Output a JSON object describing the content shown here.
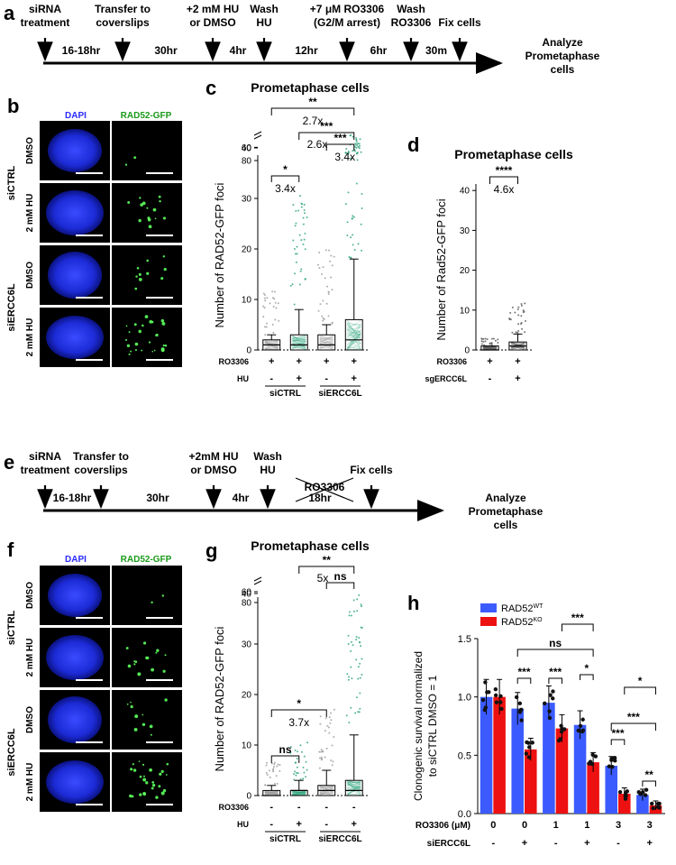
{
  "panels": {
    "a": "a",
    "b": "b",
    "c": "c",
    "d": "d",
    "e": "e",
    "f": "f",
    "g": "g",
    "h": "h"
  },
  "timeline_a": {
    "steps": [
      {
        "label1": "siRNA",
        "label2": "treatment"
      },
      {
        "label1": "Transfer to",
        "label2": "coverslips"
      },
      {
        "label1": "+2 mM HU",
        "label2": "or DMSO"
      },
      {
        "label1": "Wash",
        "label2": "HU"
      },
      {
        "label1": "+7 μM RO3306",
        "label2": "(G2/M arrest)"
      },
      {
        "label1": "Wash",
        "label2": "RO3306"
      },
      {
        "label1": "Fix cells",
        "label2": ""
      }
    ],
    "durations": [
      "16-18hr",
      "30hr",
      "4hr",
      "12hr",
      "6hr",
      "30m"
    ],
    "end_label1": "Analyze",
    "end_label2": "Prometaphase",
    "end_label3": "cells"
  },
  "timeline_e": {
    "steps": [
      {
        "label1": "siRNA",
        "label2": "treatment"
      },
      {
        "label1": "Transfer to",
        "label2": "coverslips"
      },
      {
        "label1": "+2mM HU",
        "label2": "or DMSO"
      },
      {
        "label1": "Wash",
        "label2": "HU"
      },
      {
        "label1": "Fix cells",
        "label2": ""
      }
    ],
    "crossed": "RO3306",
    "durations": [
      "16-18hr",
      "30hr",
      "4hr",
      "18hr"
    ],
    "end_label1": "Analyze",
    "end_label2": "Prometaphase",
    "end_label3": "cells"
  },
  "micrographs_b": {
    "col1": "DAPI",
    "col2": "RAD52-GFP",
    "rows": [
      "DMSO",
      "2 mM HU",
      "DMSO",
      "2 mM HU"
    ],
    "groups": [
      "siCTRL",
      "siERCC6L"
    ]
  },
  "micrographs_f": {
    "col1": "DAPI",
    "col2": "RAD52-GFP",
    "rows": [
      "DMSO",
      "2 mM HU",
      "DMSO",
      "2 mM HU"
    ],
    "groups": [
      "siCTRL",
      "siERCC6L"
    ]
  },
  "colors": {
    "blue": "#3b5bff",
    "red": "#ee1111",
    "green": "#2aa37a",
    "grey": "#9a9a9a"
  },
  "chart_data": [
    {
      "panel": "c",
      "type": "box",
      "title": "Prometaphase cells",
      "ylabel": "Number of RAD52-GFP foci",
      "yticks": [
        "0",
        "10",
        "20",
        "30",
        "40",
        "60",
        "80"
      ],
      "row1_label": "RO3306",
      "row1": [
        "+",
        "+",
        "+",
        "+"
      ],
      "row2_label": "HU",
      "row2": [
        "-",
        "+",
        "-",
        "+"
      ],
      "groups": [
        "siCTRL",
        "siERCC6L"
      ],
      "boxes": [
        {
          "q1": 0,
          "median": 1,
          "q3": 2,
          "whisker": 3,
          "color": "grey"
        },
        {
          "q1": 0,
          "median": 1,
          "q3": 3,
          "whisker": 8,
          "color": "green"
        },
        {
          "q1": 0,
          "median": 1,
          "q3": 3,
          "whisker": 5,
          "color": "grey"
        },
        {
          "q1": 0,
          "median": 2,
          "q3": 6,
          "whisker": 18,
          "color": "green"
        }
      ],
      "annotations": [
        "**",
        "2.7x",
        "***",
        "2.6x",
        "***",
        "3.4x",
        "*",
        "3.4x"
      ]
    },
    {
      "panel": "d",
      "type": "box",
      "title": "Prometaphase cells",
      "ylabel": "Number of Rad52-GFP foci",
      "yticks": [
        "0",
        "10",
        "20",
        "30",
        "40"
      ],
      "row1_label": "RO3306",
      "row1": [
        "+",
        "+"
      ],
      "row2_label": "sgERCC6L",
      "row2": [
        "-",
        "+"
      ],
      "boxes": [
        {
          "q1": 0,
          "median": 0,
          "q3": 1,
          "whisker": 1
        },
        {
          "q1": 0,
          "median": 1,
          "q3": 2,
          "whisker": 4
        }
      ],
      "annotations": [
        "****",
        "4.6x"
      ]
    },
    {
      "panel": "g",
      "type": "box",
      "title": "Prometaphase cells",
      "ylabel": "Number of RAD52-GFP foci",
      "yticks": [
        "0",
        "10",
        "20",
        "30",
        "40",
        "60",
        "80"
      ],
      "row1_label": "RO3306",
      "row1": [
        "-",
        "-",
        "-",
        "-"
      ],
      "row2_label": "HU",
      "row2": [
        "-",
        "+",
        "-",
        "+"
      ],
      "groups": [
        "siCTRL",
        "siERCC6L"
      ],
      "boxes": [
        {
          "q1": 0,
          "median": 0,
          "q3": 1,
          "whisker": 2,
          "color": "grey"
        },
        {
          "q1": 0,
          "median": 1,
          "q3": 1,
          "whisker": 3,
          "color": "green"
        },
        {
          "q1": 0,
          "median": 1,
          "q3": 2,
          "whisker": 5,
          "color": "grey"
        },
        {
          "q1": 0,
          "median": 1,
          "q3": 3,
          "whisker": 12,
          "color": "green"
        }
      ],
      "annotations": [
        "**",
        "5x",
        "ns",
        "*",
        "3.7x",
        "ns"
      ]
    },
    {
      "panel": "h",
      "type": "bar",
      "ylabel1": "Clonogenic survival normalized",
      "ylabel2": "to siCTRL DMSO = 1",
      "ylim": [
        0,
        1.5
      ],
      "yticks": [
        "0.0",
        "0.5",
        "1.0",
        "1.5"
      ],
      "legend": [
        {
          "name": "RAD52",
          "sup": "WT",
          "color": "blue"
        },
        {
          "name": "RAD52",
          "sup": "KO",
          "color": "red"
        }
      ],
      "row1_label": "RO3306 (μM)",
      "row1": [
        "0",
        "0",
        "1",
        "1",
        "3",
        "3"
      ],
      "row2_label": "siERCC6L",
      "row2": [
        "-",
        "+",
        "-",
        "+",
        "-",
        "+"
      ],
      "series": [
        {
          "name": "RAD52WT",
          "values": [
            1.0,
            0.9,
            0.95,
            0.76,
            0.41,
            0.16
          ]
        },
        {
          "name": "RAD52KO",
          "values": [
            1.0,
            0.55,
            0.73,
            0.44,
            0.17,
            0.07
          ]
        }
      ],
      "annotations": [
        "***",
        "ns",
        "***",
        "***",
        "*",
        "***",
        "***",
        "*",
        "**"
      ]
    }
  ]
}
